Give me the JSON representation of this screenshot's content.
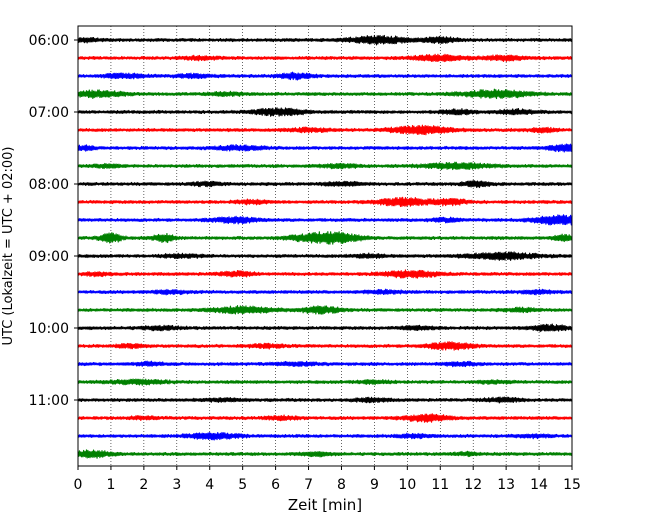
{
  "chart_data": {
    "type": "line",
    "title": "",
    "xlabel": "Zeit  [min]",
    "ylabel": "UTC (Lokalzeit = UTC + 02:00)",
    "xlim": [
      0,
      15
    ],
    "x_ticks": [
      0,
      1,
      2,
      3,
      4,
      5,
      6,
      7,
      8,
      9,
      10,
      11,
      12,
      13,
      14,
      15
    ],
    "y_ticks": [
      "06:00",
      "07:00",
      "08:00",
      "09:00",
      "10:00",
      "11:00"
    ],
    "grid": "vertical dotted",
    "trace_interval_minutes": 15,
    "colors": [
      "#000000",
      "#ff0000",
      "#0000ff",
      "#008000"
    ],
    "series": [
      {
        "start": "06:00",
        "color": "#000000",
        "bursts": [
          [
            9.1,
            0.9,
            3.5
          ],
          [
            11.0,
            0.5,
            2.5
          ],
          [
            0.3,
            0.4,
            1.5
          ]
        ]
      },
      {
        "start": "06:15",
        "color": "#ff0000",
        "bursts": [
          [
            11.0,
            0.8,
            2.5
          ],
          [
            13.0,
            0.6,
            2.0
          ],
          [
            3.7,
            0.5,
            1.5
          ]
        ]
      },
      {
        "start": "06:30",
        "color": "#0000ff",
        "bursts": [
          [
            1.4,
            0.6,
            2.0
          ],
          [
            6.6,
            0.5,
            2.5
          ],
          [
            3.5,
            0.6,
            1.5
          ]
        ]
      },
      {
        "start": "06:45",
        "color": "#008000",
        "bursts": [
          [
            0.6,
            0.8,
            3.0
          ],
          [
            12.7,
            1.0,
            3.5
          ],
          [
            4.5,
            0.5,
            1.5
          ]
        ]
      },
      {
        "start": "07:00",
        "color": "#000000",
        "bursts": [
          [
            6.1,
            0.8,
            3.0
          ],
          [
            11.5,
            0.5,
            2.0
          ],
          [
            13.3,
            0.6,
            2.0
          ]
        ]
      },
      {
        "start": "07:15",
        "color": "#ff0000",
        "bursts": [
          [
            10.4,
            0.9,
            3.5
          ],
          [
            14.1,
            0.4,
            2.0
          ],
          [
            7.0,
            0.6,
            1.5
          ]
        ]
      },
      {
        "start": "07:30",
        "color": "#0000ff",
        "bursts": [
          [
            14.8,
            0.5,
            3.0
          ],
          [
            4.9,
            0.7,
            2.0
          ],
          [
            0.2,
            0.3,
            2.0
          ]
        ]
      },
      {
        "start": "07:45",
        "color": "#008000",
        "bursts": [
          [
            11.5,
            1.0,
            2.5
          ],
          [
            8.0,
            0.6,
            1.5
          ],
          [
            0.9,
            0.4,
            1.5
          ]
        ]
      },
      {
        "start": "08:00",
        "color": "#000000",
        "bursts": [
          [
            12.1,
            0.4,
            2.5
          ],
          [
            8.0,
            0.6,
            1.5
          ],
          [
            3.9,
            0.5,
            1.5
          ]
        ]
      },
      {
        "start": "08:15",
        "color": "#ff0000",
        "bursts": [
          [
            9.9,
            0.8,
            3.5
          ],
          [
            11.3,
            0.5,
            2.5
          ],
          [
            5.3,
            0.5,
            1.5
          ]
        ]
      },
      {
        "start": "08:30",
        "color": "#0000ff",
        "bursts": [
          [
            14.6,
            0.7,
            4.5
          ],
          [
            4.8,
            0.7,
            2.5
          ],
          [
            11.2,
            0.5,
            1.5
          ]
        ]
      },
      {
        "start": "08:45",
        "color": "#008000",
        "bursts": [
          [
            7.3,
            0.8,
            4.5
          ],
          [
            1.0,
            0.3,
            4.5
          ],
          [
            2.6,
            0.3,
            4.0
          ],
          [
            8.1,
            0.6,
            2.5
          ],
          [
            14.8,
            0.4,
            2.5
          ]
        ]
      },
      {
        "start": "09:00",
        "color": "#000000",
        "bursts": [
          [
            12.9,
            1.0,
            3.0
          ],
          [
            3.1,
            0.6,
            1.5
          ],
          [
            8.8,
            0.5,
            1.5
          ]
        ]
      },
      {
        "start": "09:15",
        "color": "#ff0000",
        "bursts": [
          [
            10.1,
            0.8,
            3.0
          ],
          [
            4.8,
            0.5,
            2.0
          ],
          [
            0.6,
            0.4,
            1.5
          ]
        ]
      },
      {
        "start": "09:30",
        "color": "#0000ff",
        "bursts": [
          [
            9.3,
            0.6,
            1.5
          ],
          [
            13.9,
            0.5,
            1.5
          ],
          [
            2.8,
            0.5,
            1.5
          ]
        ]
      },
      {
        "start": "09:45",
        "color": "#008000",
        "bursts": [
          [
            5.0,
            0.9,
            3.0
          ],
          [
            7.4,
            0.6,
            3.0
          ],
          [
            13.5,
            0.5,
            1.5
          ]
        ]
      },
      {
        "start": "10:00",
        "color": "#000000",
        "bursts": [
          [
            14.3,
            0.6,
            2.5
          ],
          [
            2.5,
            0.6,
            1.5
          ],
          [
            10.3,
            0.5,
            1.5
          ]
        ]
      },
      {
        "start": "10:15",
        "color": "#ff0000",
        "bursts": [
          [
            11.3,
            0.7,
            3.0
          ],
          [
            5.7,
            0.5,
            1.5
          ],
          [
            1.6,
            0.4,
            1.5
          ]
        ]
      },
      {
        "start": "10:30",
        "color": "#0000ff",
        "bursts": [
          [
            6.6,
            0.6,
            1.5
          ],
          [
            11.6,
            0.5,
            1.5
          ],
          [
            2.2,
            0.4,
            1.5
          ]
        ]
      },
      {
        "start": "10:45",
        "color": "#008000",
        "bursts": [
          [
            1.8,
            0.9,
            1.8
          ],
          [
            9.0,
            0.5,
            1.5
          ],
          [
            12.6,
            0.5,
            1.2
          ]
        ]
      },
      {
        "start": "11:00",
        "color": "#000000",
        "bursts": [
          [
            12.9,
            0.5,
            2.0
          ],
          [
            8.9,
            0.5,
            1.5
          ],
          [
            4.4,
            0.5,
            1.2
          ]
        ]
      },
      {
        "start": "11:15",
        "color": "#ff0000",
        "bursts": [
          [
            10.6,
            0.7,
            3.0
          ],
          [
            6.2,
            0.5,
            1.5
          ],
          [
            2.0,
            0.4,
            1.2
          ]
        ]
      },
      {
        "start": "11:30",
        "color": "#0000ff",
        "bursts": [
          [
            4.1,
            0.8,
            2.5
          ],
          [
            10.2,
            0.5,
            1.5
          ],
          [
            13.8,
            0.5,
            1.2
          ]
        ]
      },
      {
        "start": "11:45",
        "color": "#008000",
        "bursts": [
          [
            0.4,
            0.6,
            3.0
          ],
          [
            7.2,
            0.5,
            1.5
          ],
          [
            11.8,
            0.4,
            1.2
          ]
        ]
      }
    ]
  }
}
